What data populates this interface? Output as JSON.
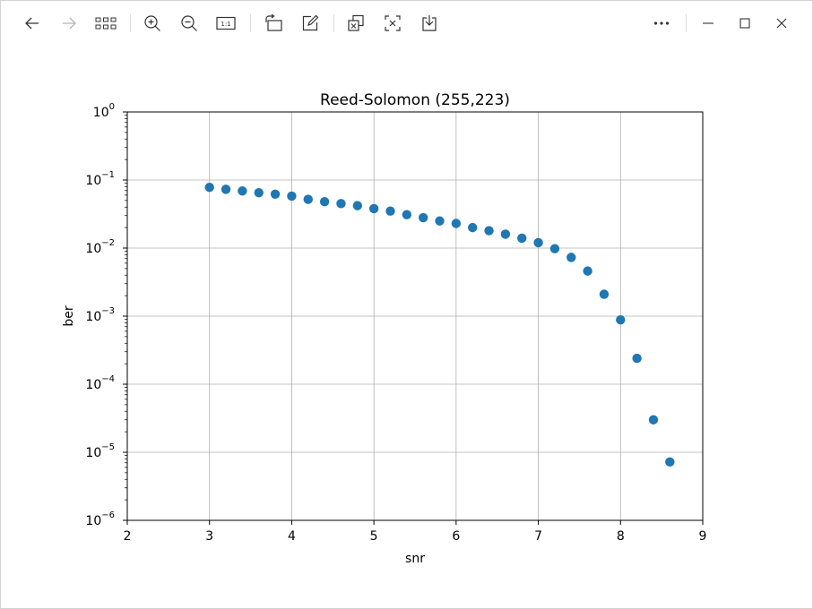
{
  "toolbar": {
    "buttons": [
      {
        "name": "back-button",
        "icon": "arrow-left-icon",
        "enabled": true
      },
      {
        "name": "forward-button",
        "icon": "arrow-right-icon",
        "enabled": false
      },
      {
        "name": "gallery-button",
        "icon": "grid-icon",
        "enabled": true
      },
      {
        "name": "zoom-in-button",
        "icon": "zoom-in-icon",
        "enabled": true
      },
      {
        "name": "zoom-out-button",
        "icon": "zoom-out-icon",
        "enabled": true
      },
      {
        "name": "actual-size-button",
        "icon": "actual-size-icon",
        "enabled": true
      },
      {
        "name": "rotate-button",
        "icon": "rotate-icon",
        "enabled": true
      },
      {
        "name": "edit-button",
        "icon": "edit-icon",
        "enabled": true
      },
      {
        "name": "copy-button",
        "icon": "copy-icon",
        "enabled": true
      },
      {
        "name": "crop-button",
        "icon": "crop-icon",
        "enabled": true
      },
      {
        "name": "save-button",
        "icon": "save-icon",
        "enabled": true
      },
      {
        "name": "more-button",
        "icon": "more-icon",
        "enabled": true
      },
      {
        "name": "minimize-button",
        "icon": "minimize-icon",
        "enabled": true
      },
      {
        "name": "maximize-button",
        "icon": "maximize-icon",
        "enabled": true
      },
      {
        "name": "close-button",
        "icon": "close-icon",
        "enabled": true
      }
    ],
    "actual_size_label": "1:1"
  },
  "chart_data": {
    "type": "scatter",
    "title": "Reed-Solomon (255,223)",
    "xlabel": "snr",
    "ylabel": "ber",
    "xlim": [
      2,
      9
    ],
    "ylim": [
      1e-06,
      1
    ],
    "yscale": "log",
    "grid": true,
    "marker_color": "#1f77b4",
    "x_ticks": [
      "2",
      "3",
      "4",
      "5",
      "6",
      "7",
      "8",
      "9"
    ],
    "y_ticks": [
      {
        "base": "10",
        "exp": "0"
      },
      {
        "base": "10",
        "exp": "−1"
      },
      {
        "base": "10",
        "exp": "−2"
      },
      {
        "base": "10",
        "exp": "−3"
      },
      {
        "base": "10",
        "exp": "−4"
      },
      {
        "base": "10",
        "exp": "−5"
      },
      {
        "base": "10",
        "exp": "−6"
      }
    ],
    "x": [
      3.0,
      3.2,
      3.4,
      3.6,
      3.8,
      4.0,
      4.2,
      4.4,
      4.6,
      4.8,
      5.0,
      5.2,
      5.4,
      5.6,
      5.8,
      6.0,
      6.2,
      6.4,
      6.6,
      6.8,
      7.0,
      7.2,
      7.4,
      7.6,
      7.8,
      8.0,
      8.2,
      8.4,
      8.6
    ],
    "y": [
      0.078,
      0.073,
      0.069,
      0.065,
      0.062,
      0.058,
      0.052,
      0.048,
      0.045,
      0.042,
      0.038,
      0.035,
      0.031,
      0.028,
      0.025,
      0.023,
      0.02,
      0.018,
      0.016,
      0.014,
      0.012,
      0.0098,
      0.0073,
      0.0046,
      0.0021,
      0.00088,
      0.00024,
      3e-05,
      7.2e-06
    ]
  }
}
